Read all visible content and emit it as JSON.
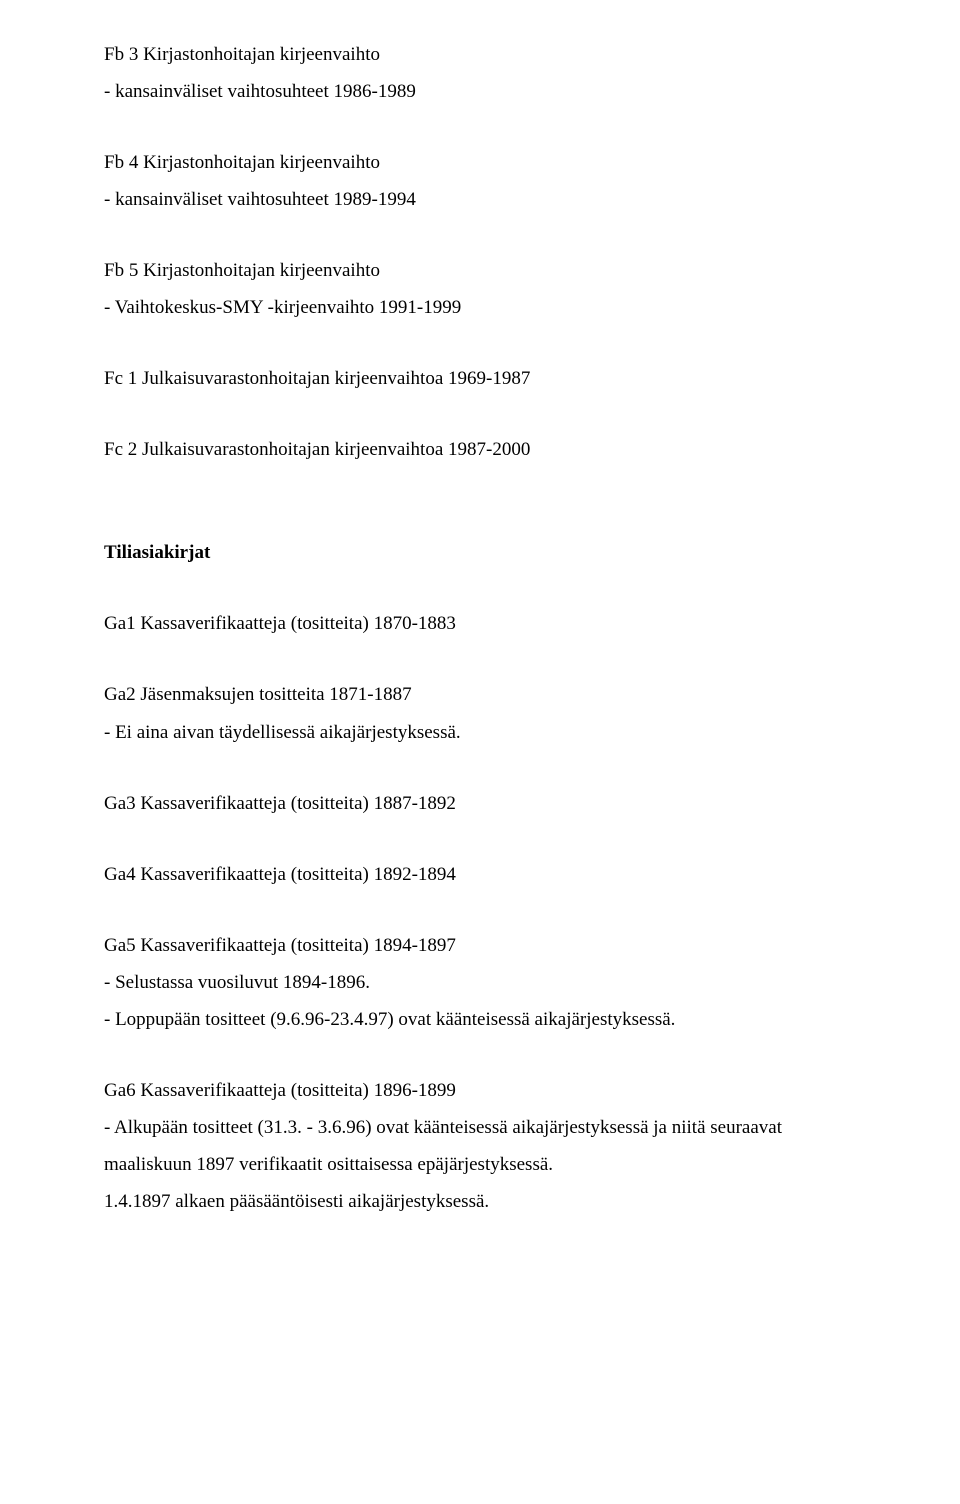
{
  "fb3": {
    "title": "Fb 3 Kirjastonhoitajan kirjeenvaihto",
    "line1": "- kansainväliset vaihtosuhteet 1986-1989"
  },
  "fb4": {
    "title": "Fb 4 Kirjastonhoitajan kirjeenvaihto",
    "line1": "- kansainväliset vaihtosuhteet 1989-1994"
  },
  "fb5": {
    "title": "Fb 5 Kirjastonhoitajan kirjeenvaihto",
    "line1": "- Vaihtokeskus-SMY -kirjeenvaihto 1991-1999"
  },
  "fc1": "Fc 1 Julkaisuvarastonhoitajan kirjeenvaihtoa 1969-1987",
  "fc2": "Fc 2 Julkaisuvarastonhoitajan kirjeenvaihtoa 1987-2000",
  "section_title": "Tiliasiakirjat",
  "ga1": "Ga1 Kassaverifikaatteja (tositteita) 1870-1883",
  "ga2": {
    "title": "Ga2 Jäsenmaksujen tositteita 1871-1887",
    "line1": "- Ei aina aivan täydellisessä aikajärjestyksessä."
  },
  "ga3": "Ga3 Kassaverifikaatteja (tositteita) 1887-1892",
  "ga4": "Ga4 Kassaverifikaatteja (tositteita) 1892-1894",
  "ga5": {
    "title": "Ga5 Kassaverifikaatteja (tositteita) 1894-1897",
    "line1": "- Selustassa vuosiluvut 1894-1896.",
    "line2": "- Loppupään tositteet (9.6.96-23.4.97) ovat käänteisessä aikajärjestyksessä."
  },
  "ga6": {
    "title": "Ga6 Kassaverifikaatteja (tositteita) 1896-1899",
    "line1": "- Alkupään tositteet (31.3. - 3.6.96) ovat käänteisessä aikajärjestyksessä ja niitä seuraavat maaliskuun 1897 verifikaatit osittaisessa epäjärjestyksessä.",
    "line2": "1.4.1897 alkaen pääsääntöisesti aikajärjestyksessä."
  }
}
